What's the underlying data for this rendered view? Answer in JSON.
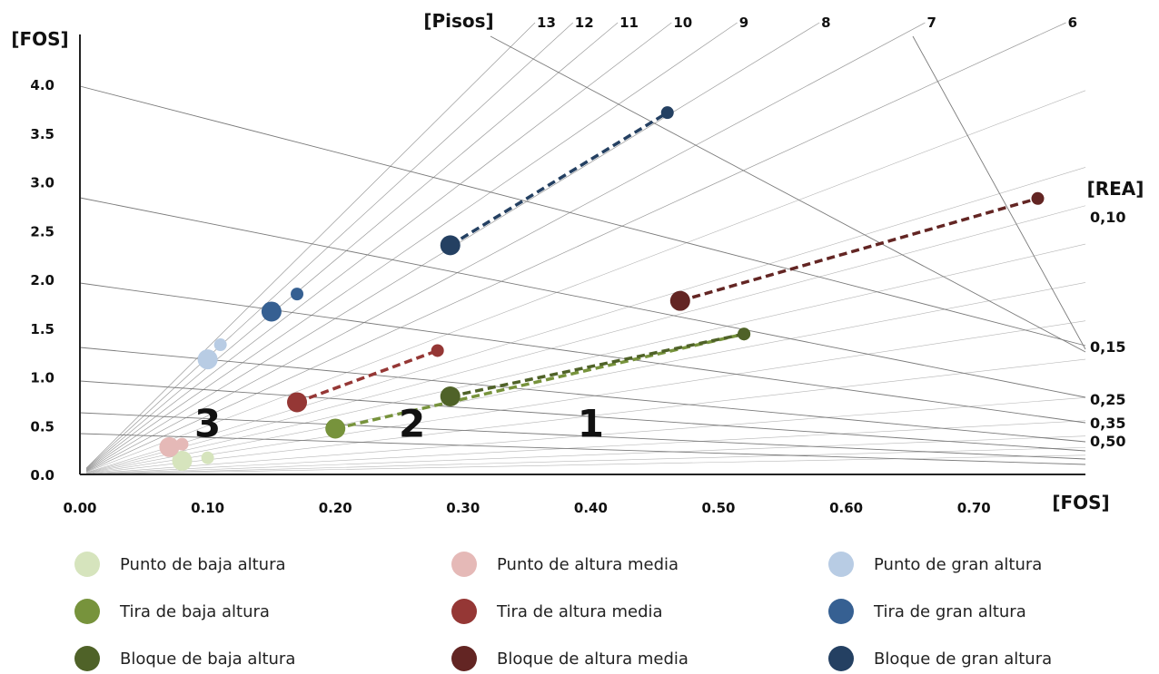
{
  "chart_data": {
    "type": "scatter",
    "x_axis": {
      "label": "[FOS]",
      "ticks": [
        "0.00",
        "0.10",
        "0.20",
        "0.30",
        "0.40",
        "0.50",
        "0.60",
        "0.70"
      ],
      "tick_values": [
        0,
        0.1,
        0.2,
        0.3,
        0.4,
        0.5,
        0.6,
        0.7
      ],
      "range": [
        0,
        0.78
      ]
    },
    "y_axis": {
      "label": "[FOS]",
      "ticks": [
        "0.0",
        "0.5",
        "1.0",
        "1.5",
        "2.0",
        "2.5",
        "3.0",
        "3.5",
        "4.0"
      ],
      "tick_values": [
        0,
        0.5,
        1.0,
        1.5,
        2.0,
        2.5,
        3.0,
        3.5,
        4.0
      ],
      "range": [
        0,
        4.4
      ]
    },
    "floors": {
      "label": "[Pisos]",
      "values": [
        13,
        12,
        11,
        10,
        9,
        8,
        7,
        6
      ],
      "labels": [
        "13",
        "12",
        "11",
        "10",
        "9",
        "8",
        "7",
        "6"
      ]
    },
    "rea": {
      "label": "[REA]",
      "values": [
        0.1,
        0.15,
        0.25,
        0.35,
        0.5
      ],
      "labels": [
        "0,10",
        "0,15",
        "0,25",
        "0,35",
        "0,50"
      ]
    },
    "zone_labels": [
      {
        "text": "3",
        "x": 0.1,
        "y": 0.72
      },
      {
        "text": "2",
        "x": 0.26,
        "y": 0.72
      },
      {
        "text": "1",
        "x": 0.4,
        "y": 0.72
      }
    ],
    "series": [
      {
        "name": "Punto de baja altura",
        "color": "#d6e4bd",
        "points": [
          [
            0.08,
            0.14
          ],
          [
            0.1,
            0.17
          ]
        ]
      },
      {
        "name": "Punto de altura media",
        "color": "#e5b9b7",
        "points": [
          [
            0.07,
            0.28
          ],
          [
            0.08,
            0.31
          ]
        ]
      },
      {
        "name": "Punto de gran altura",
        "color": "#b8cce4",
        "points": [
          [
            0.1,
            1.18
          ],
          [
            0.11,
            1.33
          ]
        ]
      },
      {
        "name": "Tira de baja altura",
        "color": "#77933c",
        "points": [
          [
            0.2,
            0.47
          ],
          [
            0.52,
            1.44
          ]
        ]
      },
      {
        "name": "Tira de altura media",
        "color": "#953735",
        "points": [
          [
            0.17,
            0.74
          ],
          [
            0.28,
            1.27
          ]
        ]
      },
      {
        "name": "Tira de gran altura",
        "color": "#366092",
        "points": [
          [
            0.15,
            1.67
          ],
          [
            0.17,
            1.85
          ]
        ]
      },
      {
        "name": "Bloque de baja altura",
        "color": "#4f6228",
        "points": [
          [
            0.29,
            0.8
          ],
          [
            0.52,
            1.44
          ]
        ]
      },
      {
        "name": "Bloque de altura media",
        "color": "#632523",
        "points": [
          [
            0.47,
            1.78
          ],
          [
            0.75,
            2.83
          ]
        ]
      },
      {
        "name": "Bloque de gran altura",
        "color": "#244062",
        "points": [
          [
            0.29,
            2.35
          ],
          [
            0.46,
            3.71
          ]
        ]
      }
    ],
    "legend_placement": "bottom",
    "grid": false
  }
}
